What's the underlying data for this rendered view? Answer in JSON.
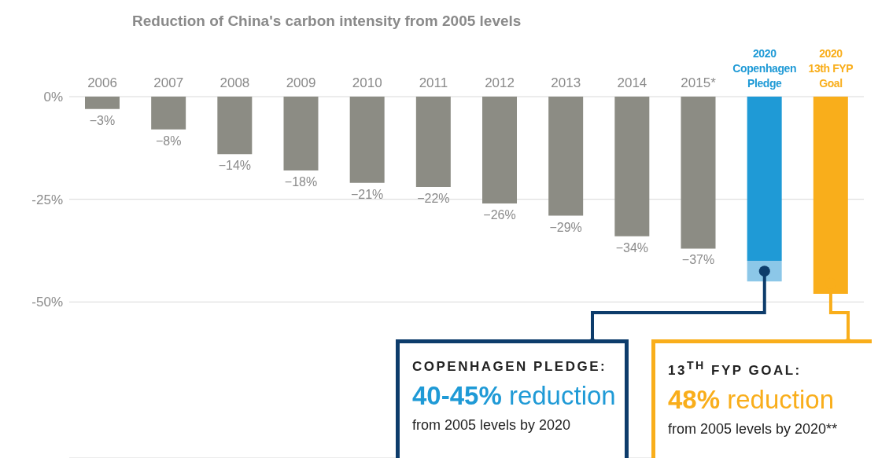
{
  "chart_data": {
    "type": "bar",
    "title": "Reduction of China's carbon intensity from 2005 levels",
    "categories": [
      "2006",
      "2007",
      "2008",
      "2009",
      "2010",
      "2011",
      "2012",
      "2013",
      "2014",
      "2015*",
      "2020\nCopenhagen\nPledge",
      "2020\n13th FYP\nGoal"
    ],
    "series": [
      {
        "color": "#8c8c84",
        "values": [
          -3,
          -8,
          -14,
          -18,
          -21,
          -22,
          -26,
          -29,
          -34,
          -37,
          null,
          null
        ],
        "value_labels": [
          "−3%",
          "−8%",
          "−14%",
          "−18%",
          "−21%",
          "−22%",
          "−26%",
          "−29%",
          "−34%",
          "−37%",
          null,
          null
        ]
      },
      {
        "color": "#1f9ad6",
        "values": [
          null,
          null,
          null,
          null,
          null,
          null,
          null,
          null,
          null,
          null,
          -40,
          null
        ]
      },
      {
        "color": "#8cc7e8",
        "values": [
          null,
          null,
          null,
          null,
          null,
          null,
          null,
          null,
          null,
          null,
          -5,
          null
        ]
      },
      {
        "color": "#f9ae1b",
        "values": [
          null,
          null,
          null,
          null,
          null,
          null,
          null,
          null,
          null,
          null,
          null,
          -48
        ]
      }
    ],
    "stacked": true,
    "ylim": [
      -88,
      0
    ],
    "yticks": [
      {
        "value": 0,
        "label": "0%"
      },
      {
        "value": -25,
        "label": "-25%"
      },
      {
        "value": -50,
        "label": "-50%"
      }
    ],
    "grid": "y",
    "annotations": [
      "COPENHAGEN PLEDGE:",
      "40-45% reduction",
      "from 2005 levels by 2020",
      "13$^{TH}$ FYP GOAL:",
      "48% reduction",
      "from 2005 levels by 2020**"
    ]
  }
}
